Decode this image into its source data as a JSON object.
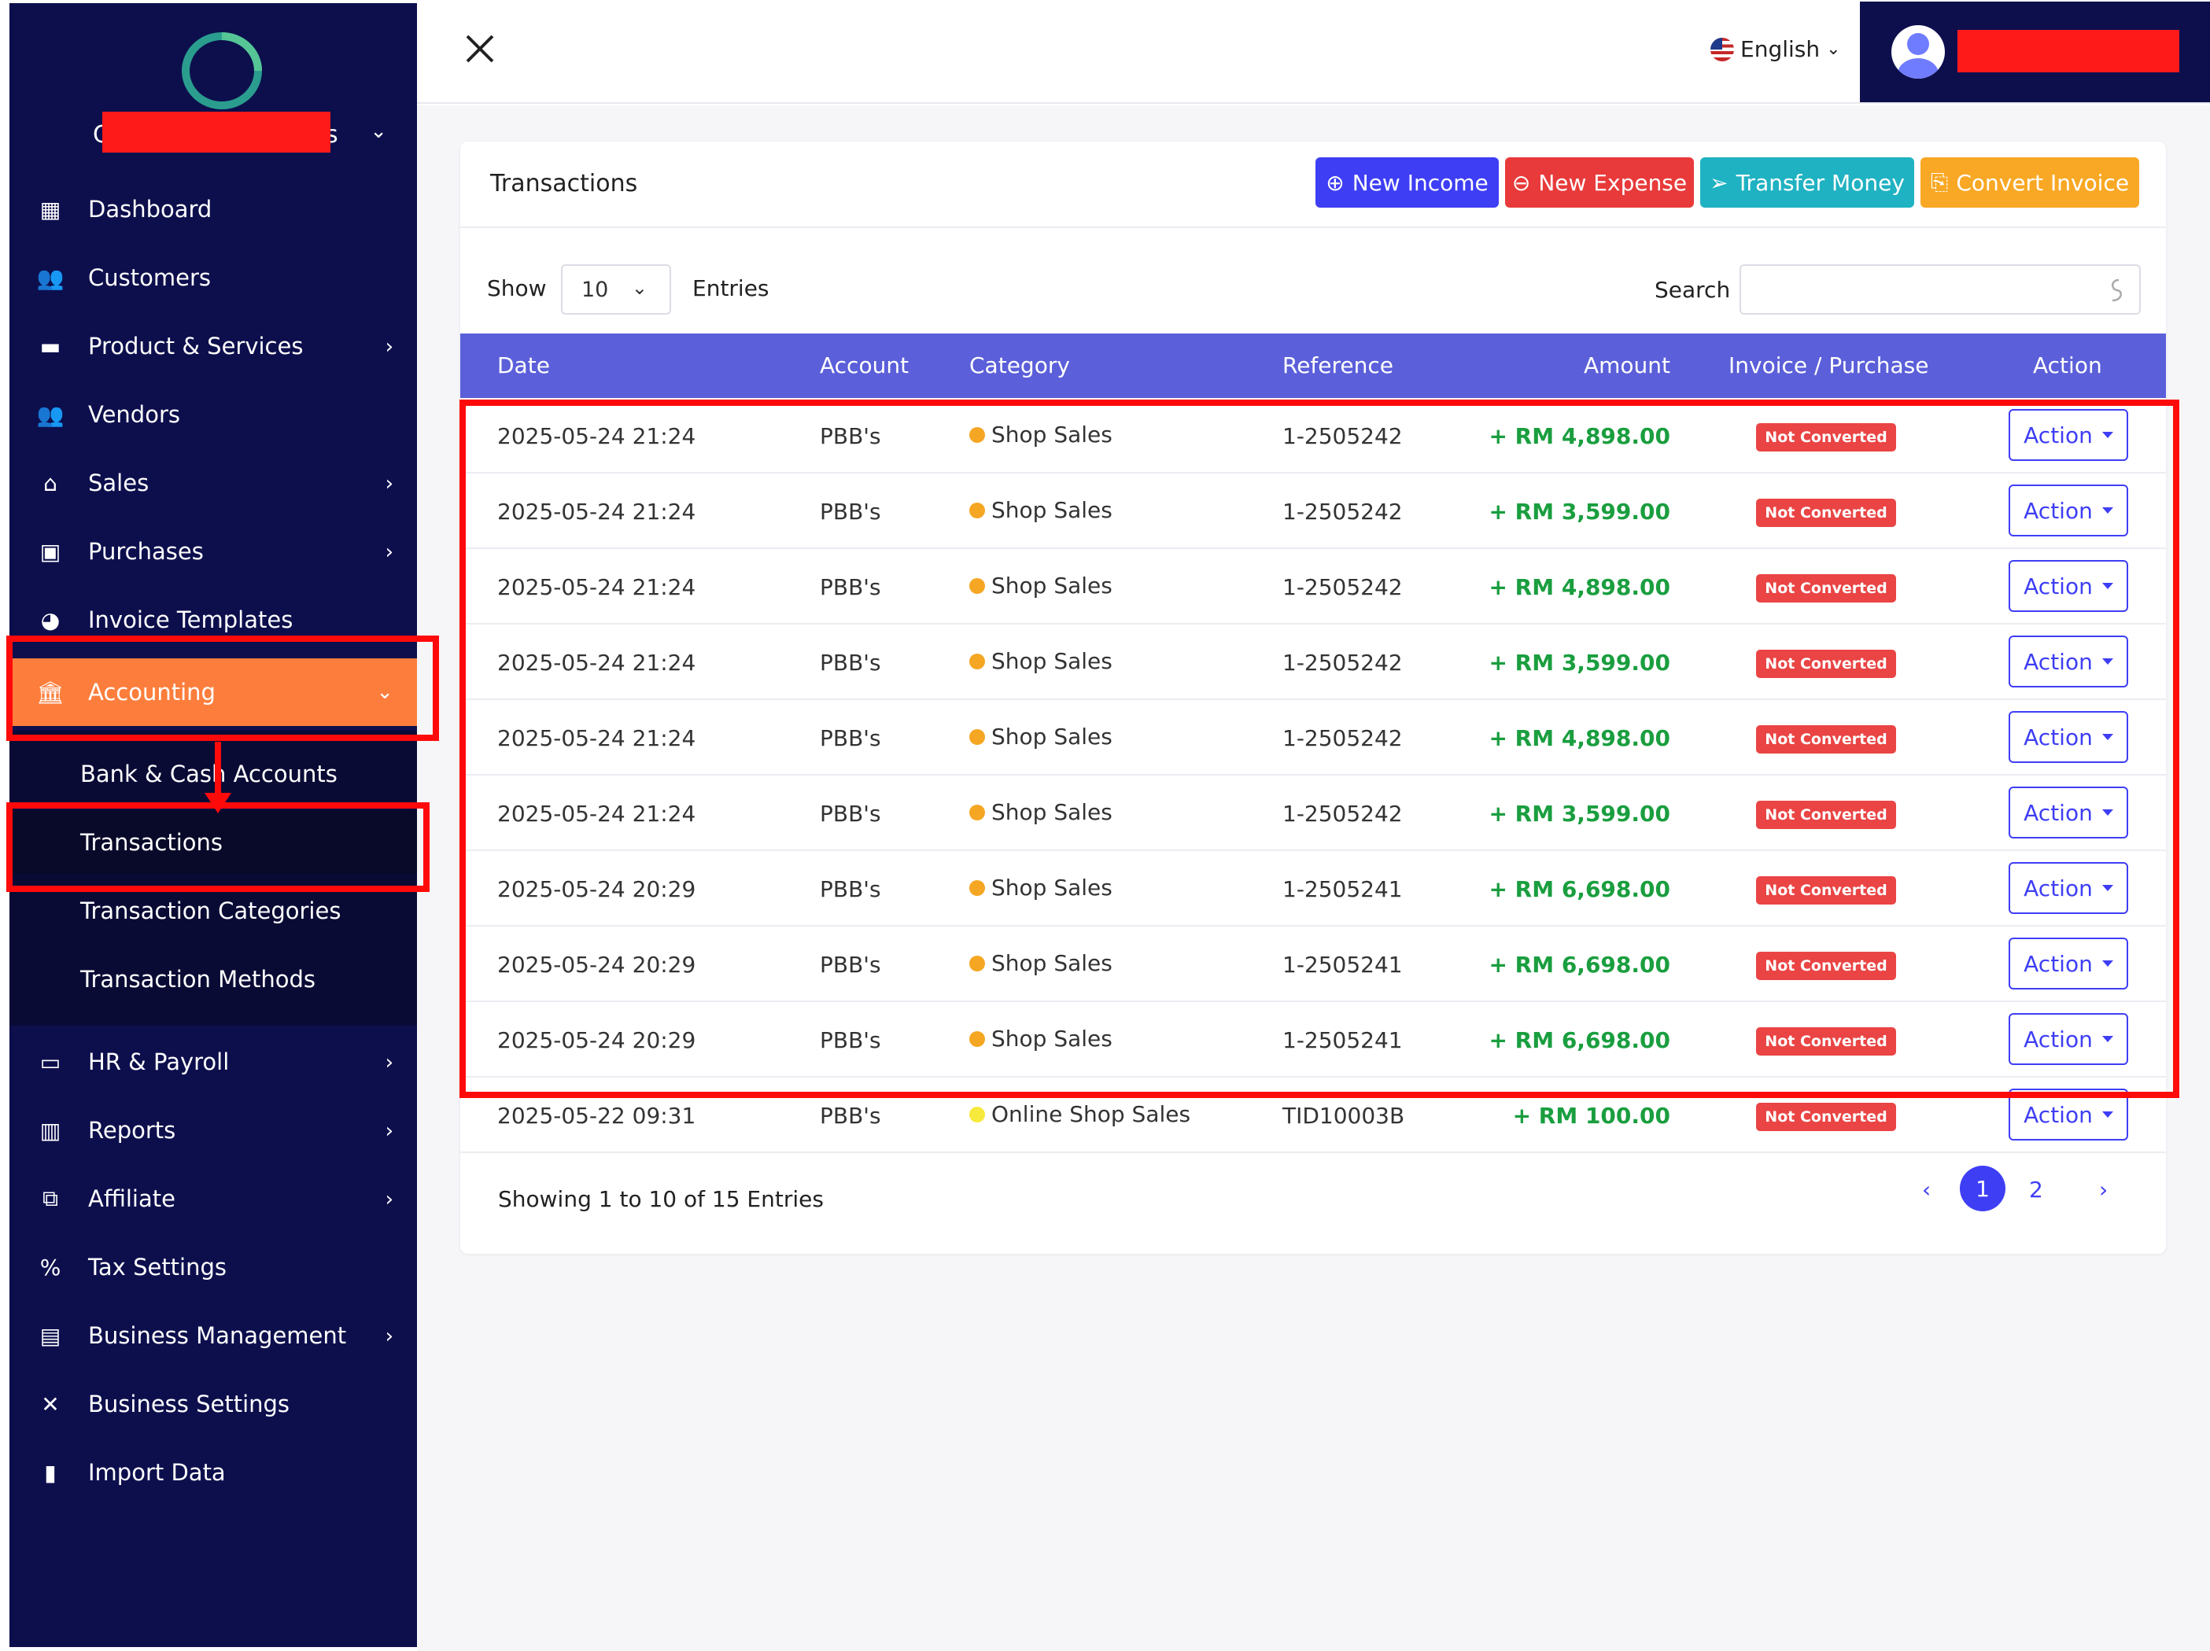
{
  "sidebar": {
    "company_prefix": "C",
    "company_suffix": "s",
    "menu": {
      "dashboard": "Dashboard",
      "customers": "Customers",
      "products": "Product & Services",
      "vendors": "Vendors",
      "sales": "Sales",
      "purchases": "Purchases",
      "invoice_templates": "Invoice Templates",
      "accounting": "Accounting",
      "hr_payroll": "HR & Payroll",
      "reports": "Reports",
      "affiliate": "Affiliate",
      "tax_settings": "Tax Settings",
      "business_management": "Business Management",
      "business_settings": "Business Settings",
      "import_data": "Import Data"
    },
    "accounting_submenu": {
      "bank_cash": "Bank & Cash Accounts",
      "transactions": "Transactions",
      "transaction_categories": "Transaction Categories",
      "transaction_methods": "Transaction Methods"
    }
  },
  "topbar": {
    "language": "English"
  },
  "card": {
    "title": "Transactions",
    "buttons": {
      "new_income": "New Income",
      "new_expense": "New Expense",
      "transfer_money": "Transfer Money",
      "convert_invoice": "Convert Invoice"
    },
    "show_label": "Show",
    "page_size": "10",
    "entries_label": "Entries",
    "search_label": "Search",
    "search_value": "",
    "columns": {
      "date": "Date",
      "account": "Account",
      "category": "Category",
      "reference": "Reference",
      "amount": "Amount",
      "invoice_purchase": "Invoice / Purchase",
      "action": "Action"
    },
    "rows": [
      {
        "date": "2025-05-24 21:24",
        "account": "PBB's",
        "category": "Shop Sales",
        "reference": "1-2505242",
        "amount": "+ RM 4,898.00",
        "status": "Not Converted",
        "action": "Action"
      },
      {
        "date": "2025-05-24 21:24",
        "account": "PBB's",
        "category": "Shop Sales",
        "reference": "1-2505242",
        "amount": "+ RM 3,599.00",
        "status": "Not Converted",
        "action": "Action"
      },
      {
        "date": "2025-05-24 21:24",
        "account": "PBB's",
        "category": "Shop Sales",
        "reference": "1-2505242",
        "amount": "+ RM 4,898.00",
        "status": "Not Converted",
        "action": "Action"
      },
      {
        "date": "2025-05-24 21:24",
        "account": "PBB's",
        "category": "Shop Sales",
        "reference": "1-2505242",
        "amount": "+ RM 3,599.00",
        "status": "Not Converted",
        "action": "Action"
      },
      {
        "date": "2025-05-24 21:24",
        "account": "PBB's",
        "category": "Shop Sales",
        "reference": "1-2505242",
        "amount": "+ RM 4,898.00",
        "status": "Not Converted",
        "action": "Action"
      },
      {
        "date": "2025-05-24 21:24",
        "account": "PBB's",
        "category": "Shop Sales",
        "reference": "1-2505242",
        "amount": "+ RM 3,599.00",
        "status": "Not Converted",
        "action": "Action"
      },
      {
        "date": "2025-05-24 20:29",
        "account": "PBB's",
        "category": "Shop Sales",
        "reference": "1-2505241",
        "amount": "+ RM 6,698.00",
        "status": "Not Converted",
        "action": "Action"
      },
      {
        "date": "2025-05-24 20:29",
        "account": "PBB's",
        "category": "Shop Sales",
        "reference": "1-2505241",
        "amount": "+ RM 6,698.00",
        "status": "Not Converted",
        "action": "Action"
      },
      {
        "date": "2025-05-24 20:29",
        "account": "PBB's",
        "category": "Shop Sales",
        "reference": "1-2505241",
        "amount": "+ RM 6,698.00",
        "status": "Not Converted",
        "action": "Action"
      },
      {
        "date": "2025-05-22 09:31",
        "account": "PBB's",
        "category": "Online Shop Sales",
        "reference": "TID10003B",
        "amount": "+ RM 100.00",
        "status": "Not Converted",
        "action": "Action"
      }
    ],
    "footer": "Showing 1 to 10 of 15 Entries",
    "pagination": {
      "prev": "‹",
      "page1": "1",
      "page2": "2",
      "next": "›"
    }
  },
  "colors": {
    "sidebar_bg": "#0d0f4d",
    "active_item": "#fd7e3c",
    "table_header": "#5b5fd9",
    "amount_positive": "#1a9e3f",
    "badge_red": "#ea4444",
    "primary": "#3e3ef5"
  }
}
